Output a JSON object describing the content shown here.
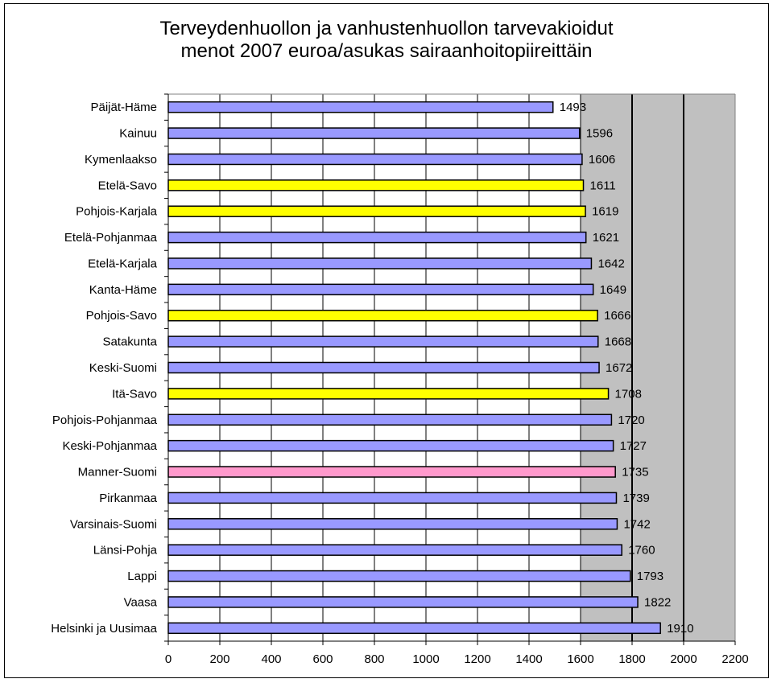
{
  "chart_data": {
    "type": "bar",
    "orientation": "horizontal",
    "title_lines": [
      "Terveydenhuollon ja vanhustenhuollon tarvevakioidut",
      "menot 2007 euroa/asukas sairaanhoitopiireittäin"
    ],
    "categories": [
      "Päijät-Häme",
      "Kainuu",
      "Kymenlaakso",
      "Etelä-Savo",
      "Pohjois-Karjala",
      "Etelä-Pohjanmaa",
      "Etelä-Karjala",
      "Kanta-Häme",
      "Pohjois-Savo",
      "Satakunta",
      "Keski-Suomi",
      "Itä-Savo",
      "Pohjois-Pohjanmaa",
      "Keski-Pohjanmaa",
      "Manner-Suomi",
      "Pirkanmaa",
      "Varsinais-Suomi",
      "Länsi-Pohja",
      "Lappi",
      "Vaasa",
      "Helsinki ja Uusimaa"
    ],
    "values": [
      1493,
      1596,
      1606,
      1611,
      1619,
      1621,
      1642,
      1649,
      1666,
      1668,
      1672,
      1708,
      1720,
      1727,
      1735,
      1739,
      1742,
      1760,
      1793,
      1822,
      1910
    ],
    "value_labels": [
      "1493",
      "1596",
      "1606",
      "1611",
      "1619",
      "1621",
      "1642",
      "1649",
      "1666",
      "1668",
      "1672",
      "1708",
      "1720",
      "1727",
      "1735",
      "1739",
      "1742",
      "1760",
      "1793",
      "1822",
      "1910"
    ],
    "bar_colors": [
      "#9999ff",
      "#9999ff",
      "#9999ff",
      "#ffff00",
      "#ffff00",
      "#9999ff",
      "#9999ff",
      "#9999ff",
      "#ffff00",
      "#9999ff",
      "#9999ff",
      "#ffff00",
      "#9999ff",
      "#9999ff",
      "#ff99cc",
      "#9999ff",
      "#9999ff",
      "#9999ff",
      "#9999ff",
      "#9999ff",
      "#9999ff"
    ],
    "xlim": [
      0,
      2200
    ],
    "xticks": [
      0,
      200,
      400,
      600,
      800,
      1000,
      1200,
      1400,
      1600,
      1800,
      2000,
      2200
    ],
    "xtick_labels": [
      "0",
      "200",
      "400",
      "600",
      "800",
      "1000",
      "1200",
      "1400",
      "1600",
      "1800",
      "2000",
      "2200"
    ],
    "gridlines": "vertical",
    "plot_background": "#c0c0c0",
    "plot_background_from": 1600,
    "emphasized_gridlines": [
      1800,
      2000
    ],
    "legend": "none"
  }
}
